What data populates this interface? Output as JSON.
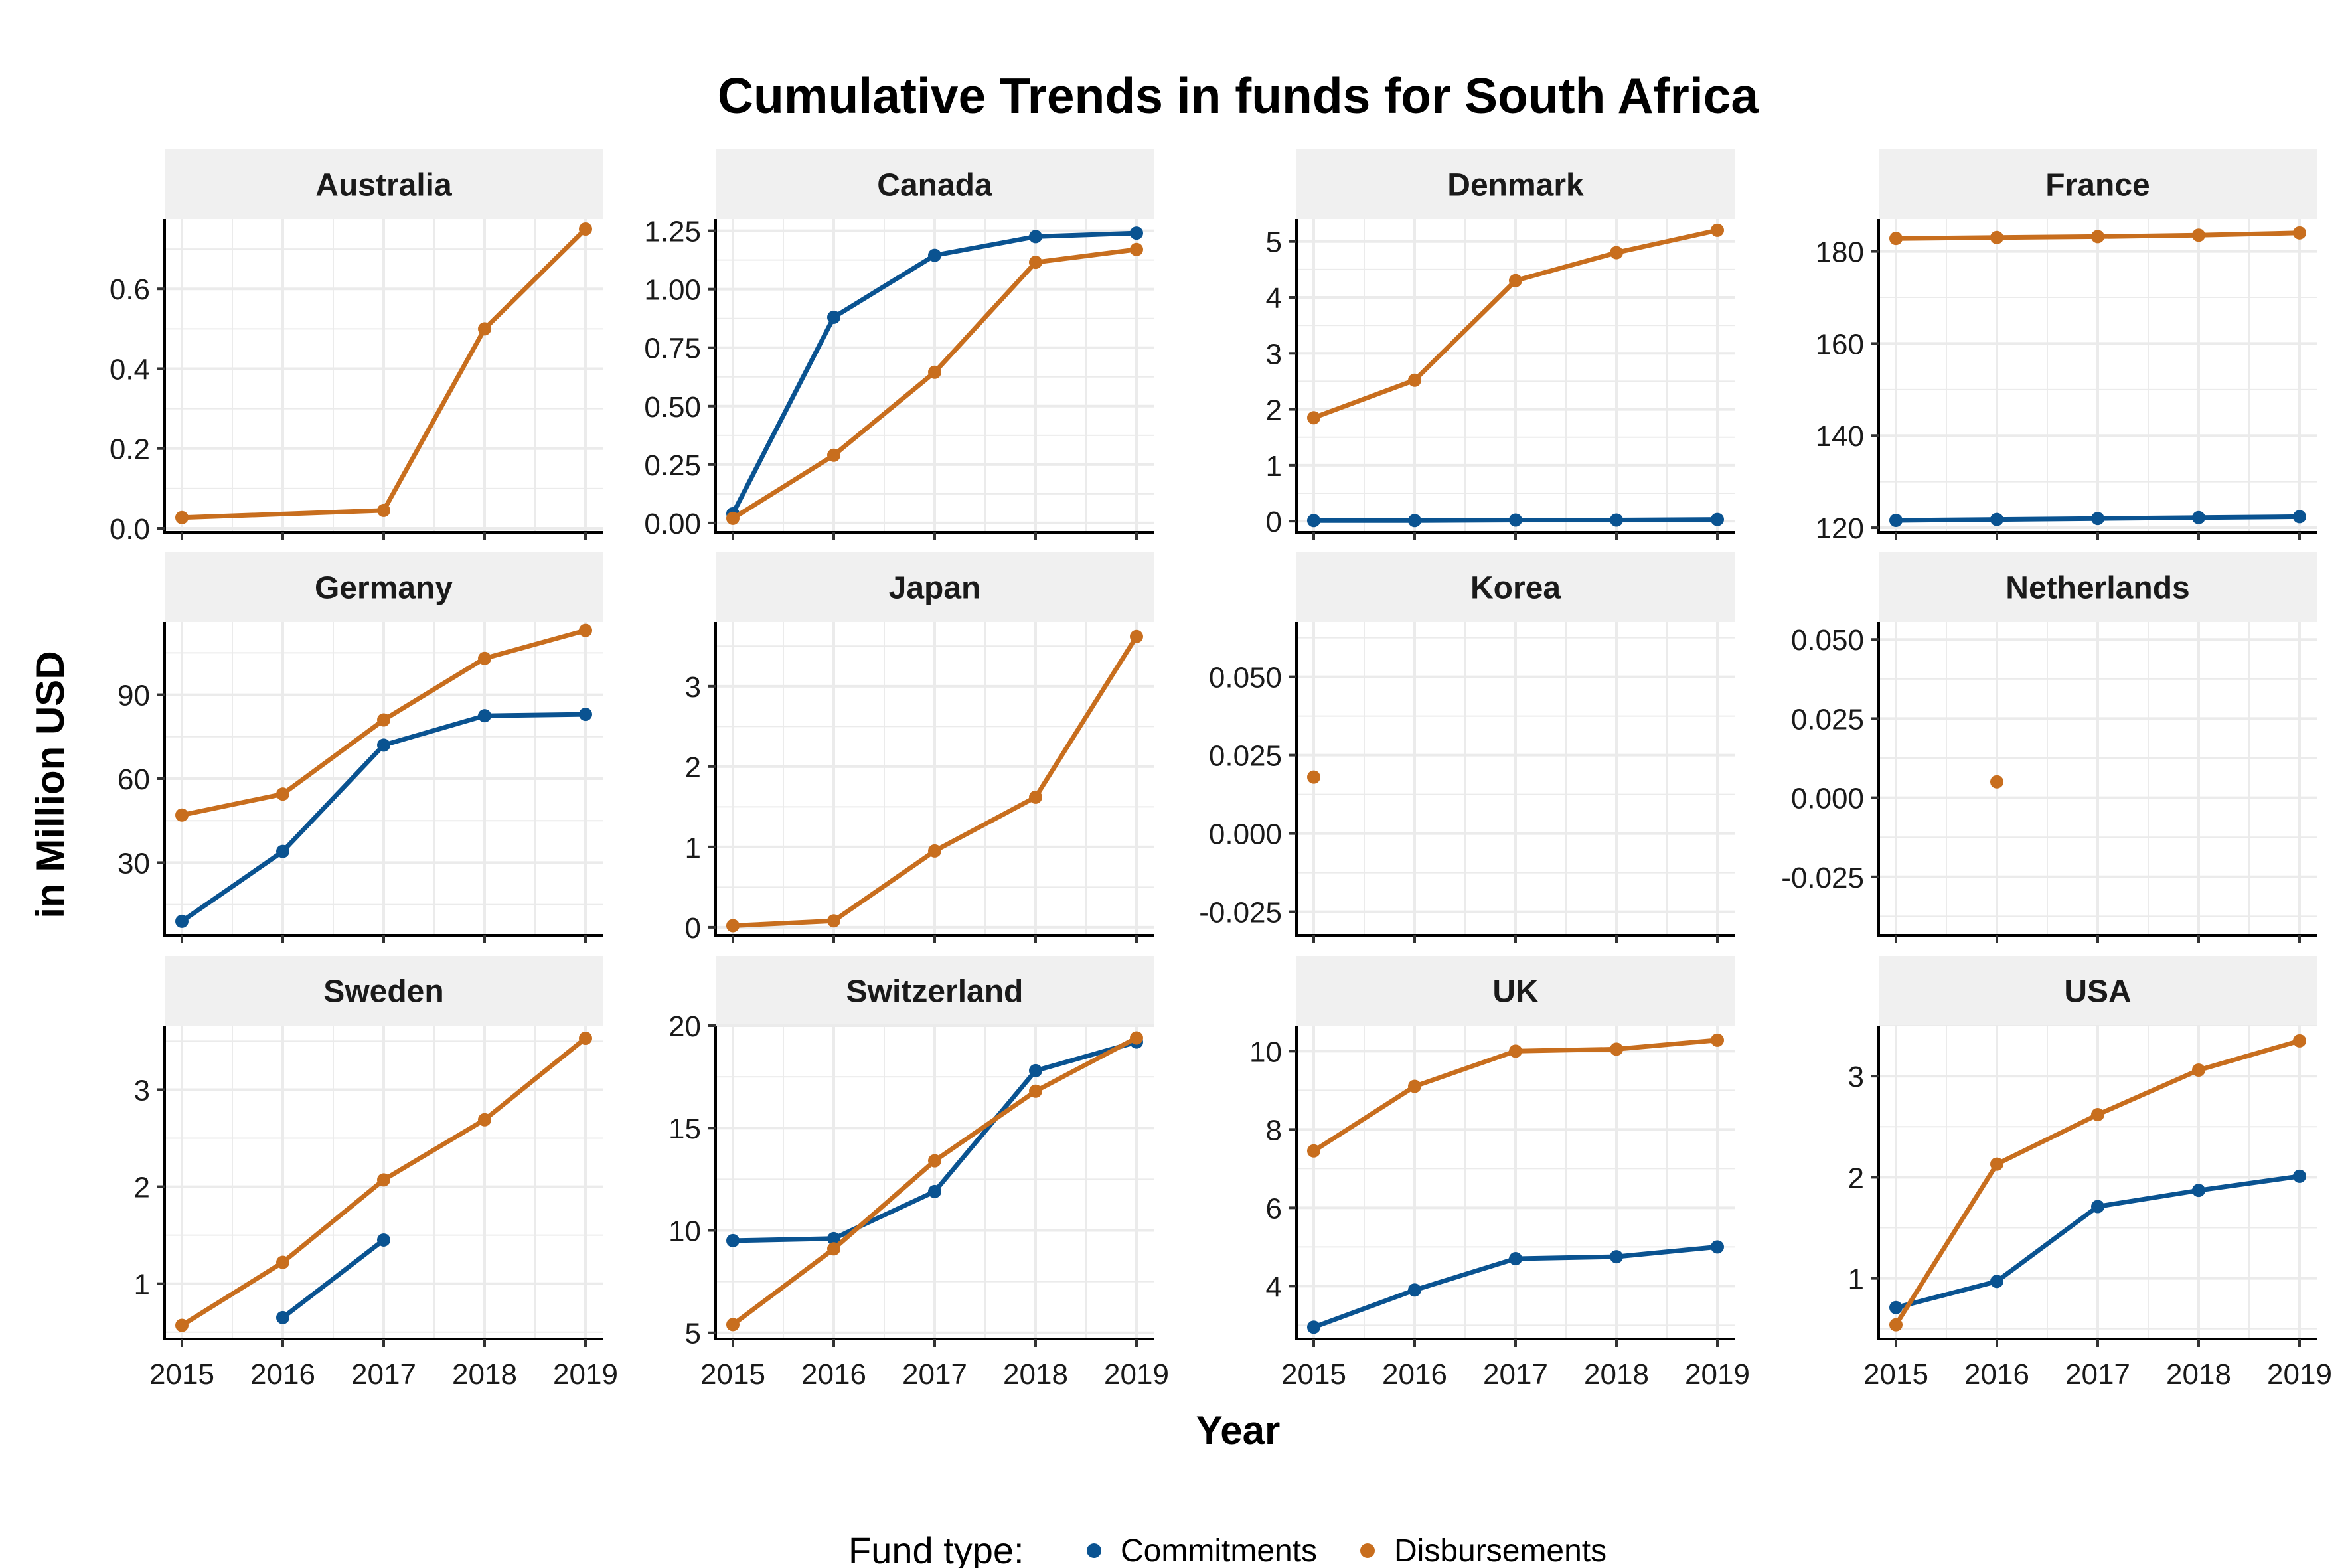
{
  "chart_data": {
    "type": "line",
    "title": "Cumulative Trends in funds for South Africa",
    "xlabel": "Year",
    "ylabel": "in Million USD",
    "x": [
      2015,
      2016,
      2017,
      2018,
      2019
    ],
    "x_tick_labels": [
      "2015",
      "2016",
      "2017",
      "2018",
      "2019"
    ],
    "grid": true,
    "legend": {
      "title": "Fund type:",
      "placement": "bottom",
      "entries": [
        {
          "name": "Commitments",
          "color": "#0a5391"
        },
        {
          "name": "Disbursements",
          "color": "#c86e1e"
        }
      ]
    },
    "panels": [
      {
        "name": "Australia",
        "ylim": [
          -0.01,
          0.775
        ],
        "yticks": [
          0.0,
          0.2,
          0.4,
          0.6
        ],
        "ytick_labels": [
          "0.0",
          "0.2",
          "0.4",
          "0.6"
        ],
        "series": [
          {
            "name": "Disbursements",
            "values": [
              0.027,
              null,
              0.045,
              0.5,
              0.75
            ]
          }
        ]
      },
      {
        "name": "Canada",
        "ylim": [
          -0.04,
          1.3
        ],
        "yticks": [
          0.0,
          0.25,
          0.5,
          0.75,
          1.0,
          1.25
        ],
        "ytick_labels": [
          "0.00",
          "0.25",
          "0.50",
          "0.75",
          "1.00",
          "1.25"
        ],
        "series": [
          {
            "name": "Commitments",
            "values": [
              0.04,
              0.88,
              1.145,
              1.225,
              1.24
            ]
          },
          {
            "name": "Disbursements",
            "values": [
              0.02,
              0.29,
              0.645,
              1.115,
              1.17
            ]
          }
        ]
      },
      {
        "name": "Denmark",
        "ylim": [
          -0.2,
          5.4
        ],
        "yticks": [
          0,
          1,
          2,
          3,
          4,
          5
        ],
        "ytick_labels": [
          "0",
          "1",
          "2",
          "3",
          "4",
          "5"
        ],
        "series": [
          {
            "name": "Commitments",
            "values": [
              0.01,
              0.01,
              0.02,
              0.02,
              0.03
            ]
          },
          {
            "name": "Disbursements",
            "values": [
              1.85,
              2.52,
              4.3,
              4.8,
              5.2
            ]
          }
        ]
      },
      {
        "name": "France",
        "ylim": [
          119,
          187
        ],
        "yticks": [
          120,
          140,
          160,
          180
        ],
        "ytick_labels": [
          "120",
          "140",
          "160",
          "180"
        ],
        "series": [
          {
            "name": "Commitments",
            "values": [
              121.6,
              121.8,
              122.0,
              122.2,
              122.4
            ]
          },
          {
            "name": "Disbursements",
            "values": [
              182.8,
              183.0,
              183.2,
              183.5,
              184.0
            ]
          }
        ]
      },
      {
        "name": "Germany",
        "ylim": [
          4,
          116
        ],
        "yticks": [
          30,
          60,
          90
        ],
        "ytick_labels": [
          "30",
          "60",
          "90"
        ],
        "series": [
          {
            "name": "Commitments",
            "values": [
              9,
              34,
              72,
              82.5,
              83
            ]
          },
          {
            "name": "Disbursements",
            "values": [
              47,
              54.5,
              81,
              103,
              113
            ]
          }
        ]
      },
      {
        "name": "Japan",
        "ylim": [
          -0.1,
          3.8
        ],
        "yticks": [
          0,
          1,
          2,
          3
        ],
        "ytick_labels": [
          "0",
          "1",
          "2",
          "3"
        ],
        "series": [
          {
            "name": "Disbursements",
            "values": [
              0.02,
              0.08,
              0.95,
              1.62,
              3.62
            ]
          }
        ]
      },
      {
        "name": "Korea",
        "ylim": [
          -0.0325,
          0.0675
        ],
        "yticks": [
          -0.025,
          0.0,
          0.025,
          0.05
        ],
        "ytick_labels": [
          "-0.025",
          "0.000",
          "0.025",
          "0.050"
        ],
        "series": [
          {
            "name": "Disbursements",
            "values": [
              0.018,
              null,
              null,
              null,
              null
            ]
          }
        ]
      },
      {
        "name": "Netherlands",
        "ylim": [
          -0.0435,
          0.0555
        ],
        "yticks": [
          -0.025,
          0.0,
          0.025,
          0.05
        ],
        "ytick_labels": [
          "-0.025",
          "0.000",
          "0.025",
          "0.050"
        ],
        "series": [
          {
            "name": "Disbursements",
            "values": [
              null,
              0.005,
              null,
              null,
              null
            ]
          }
        ]
      },
      {
        "name": "Sweden",
        "ylim": [
          0.43,
          3.66
        ],
        "yticks": [
          1,
          2,
          3
        ],
        "ytick_labels": [
          "1",
          "2",
          "3"
        ],
        "series": [
          {
            "name": "Commitments",
            "values": [
              null,
              0.65,
              1.45,
              null,
              null
            ]
          },
          {
            "name": "Disbursements",
            "values": [
              0.57,
              1.22,
              2.07,
              2.69,
              3.53
            ]
          }
        ]
      },
      {
        "name": "Switzerland",
        "ylim": [
          4.7,
          20.0
        ],
        "yticks": [
          5,
          10,
          15,
          20
        ],
        "ytick_labels": [
          "5",
          "10",
          "15",
          "20"
        ],
        "series": [
          {
            "name": "Commitments",
            "values": [
              9.5,
              9.6,
              11.9,
              17.8,
              19.2
            ]
          },
          {
            "name": "Disbursements",
            "values": [
              5.4,
              9.1,
              13.4,
              16.8,
              19.4
            ]
          }
        ]
      },
      {
        "name": "UK",
        "ylim": [
          2.65,
          10.65
        ],
        "yticks": [
          4,
          6,
          8,
          10
        ],
        "ytick_labels": [
          "4",
          "6",
          "8",
          "10"
        ],
        "series": [
          {
            "name": "Commitments",
            "values": [
              2.95,
              3.9,
              4.7,
              4.75,
              5.0
            ]
          },
          {
            "name": "Disbursements",
            "values": [
              7.45,
              9.1,
              10.0,
              10.05,
              10.28
            ]
          }
        ]
      },
      {
        "name": "USA",
        "ylim": [
          0.4,
          3.5
        ],
        "yticks": [
          1,
          2,
          3
        ],
        "ytick_labels": [
          "1",
          "2",
          "3"
        ],
        "series": [
          {
            "name": "Commitments",
            "values": [
              0.71,
              0.97,
              1.71,
              1.87,
              2.01
            ]
          },
          {
            "name": "Disbursements",
            "values": [
              0.54,
              2.13,
              2.62,
              3.06,
              3.35
            ]
          }
        ]
      }
    ]
  }
}
